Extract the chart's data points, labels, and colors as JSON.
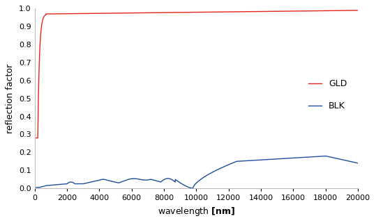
{
  "title": "",
  "xlabel": "wavelength [nm]",
  "ylabel": "reflection factor",
  "xlim": [
    0,
    20000
  ],
  "ylim": [
    0,
    1.0
  ],
  "yticks": [
    0,
    0.1,
    0.2,
    0.3,
    0.4,
    0.5,
    0.6,
    0.7,
    0.8,
    0.9,
    1
  ],
  "xticks": [
    0,
    2000,
    4000,
    6000,
    8000,
    10000,
    12000,
    14000,
    16000,
    18000,
    20000
  ],
  "gld_color": "#e8251a",
  "blk_color": "#1f4e9e",
  "legend_labels": [
    "GLD",
    "BLK"
  ],
  "background_color": "#ffffff",
  "xlabel_bold_part": "[nm]",
  "xlabel_normal_part": "wavelength "
}
